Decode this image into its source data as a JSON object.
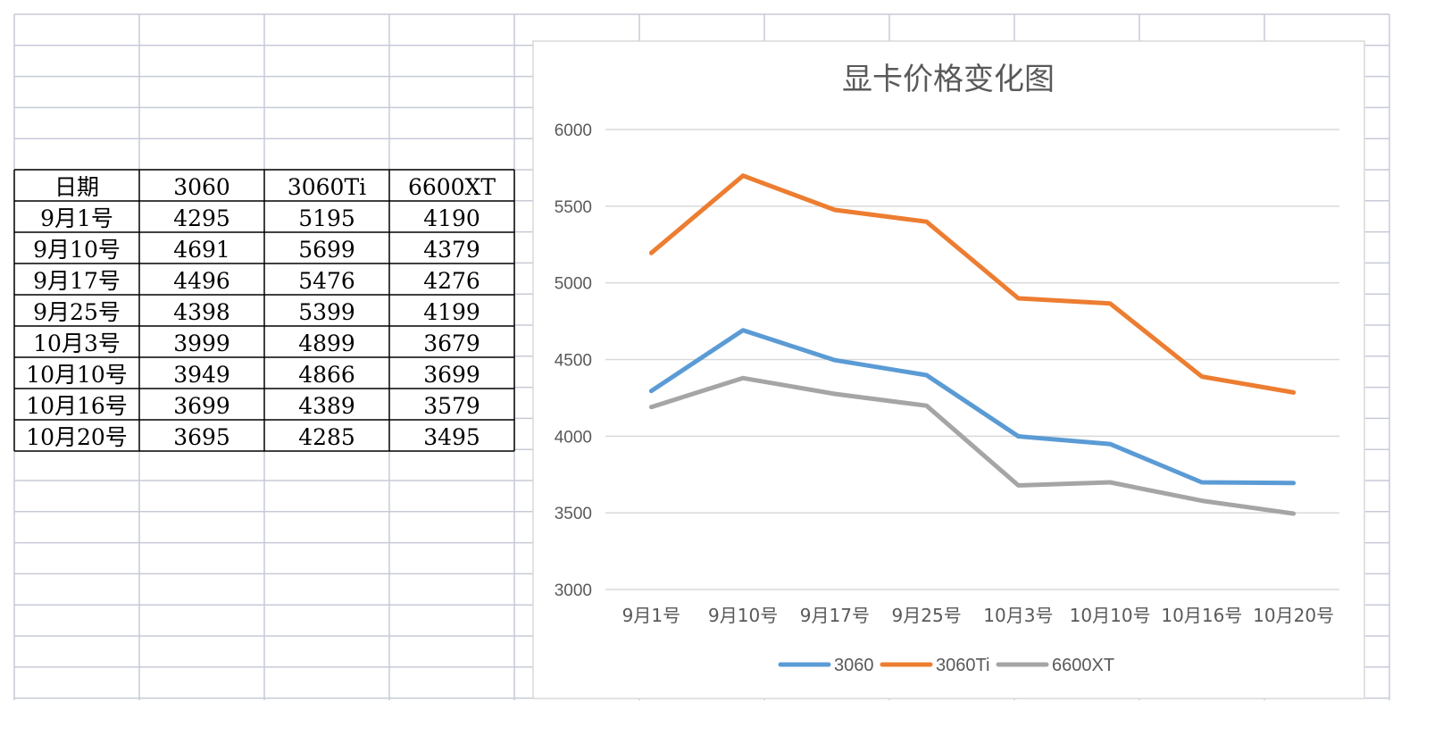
{
  "table": {
    "headers": [
      "日期",
      "3060",
      "3060Ti",
      "6600XT"
    ],
    "rows": [
      [
        "9月1号",
        "4295",
        "5195",
        "4190"
      ],
      [
        "9月10号",
        "4691",
        "5699",
        "4379"
      ],
      [
        "9月17号",
        "4496",
        "5476",
        "4276"
      ],
      [
        "9月25号",
        "4398",
        "5399",
        "4199"
      ],
      [
        "10月3号",
        "3999",
        "4899",
        "3679"
      ],
      [
        "10月10号",
        "3949",
        "4866",
        "3699"
      ],
      [
        "10月16号",
        "3699",
        "4389",
        "3579"
      ],
      [
        "10月20号",
        "3695",
        "4285",
        "3495"
      ]
    ]
  },
  "chart_data": {
    "type": "line",
    "title": "显卡价格变化图",
    "categories": [
      "9月1号",
      "9月10号",
      "9月17号",
      "9月25号",
      "10月3号",
      "10月10号",
      "10月16号",
      "10月20号"
    ],
    "series": [
      {
        "name": "3060",
        "color": "#5b9bd5",
        "values": [
          4295,
          4691,
          4496,
          4398,
          3999,
          3949,
          3699,
          3695
        ]
      },
      {
        "name": "3060Ti",
        "color": "#ed7d31",
        "values": [
          5195,
          5699,
          5476,
          5399,
          4899,
          4866,
          4389,
          4285
        ]
      },
      {
        "name": "6600XT",
        "color": "#a5a5a5",
        "values": [
          4190,
          4379,
          4276,
          4199,
          3679,
          3699,
          3579,
          3495
        ]
      }
    ],
    "ylim": [
      3000,
      6000
    ],
    "yticks": [
      3000,
      3500,
      4000,
      4500,
      5000,
      5500,
      6000
    ],
    "grid": true,
    "legend": "bottom",
    "xlabel": "",
    "ylabel": ""
  }
}
